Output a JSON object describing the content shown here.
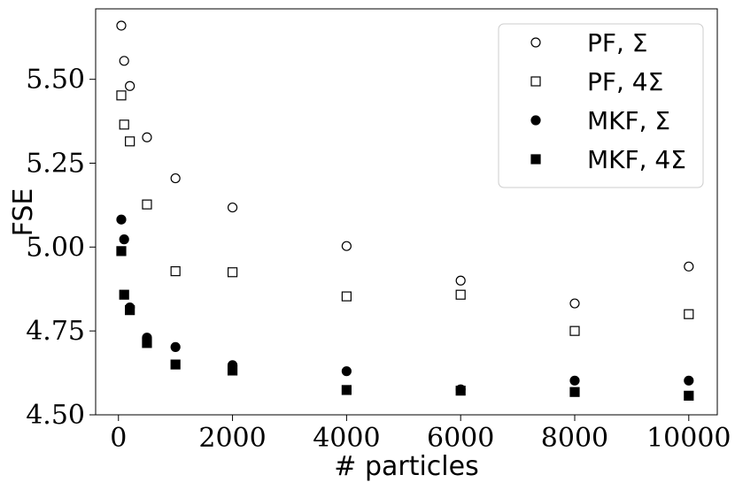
{
  "chart_data": {
    "type": "scatter",
    "title": "",
    "xlabel": "# particles",
    "ylabel": "FSE",
    "xlim": [
      -400,
      10500
    ],
    "ylim": [
      4.5,
      5.71
    ],
    "xticks": [
      0,
      2000,
      4000,
      6000,
      8000,
      10000
    ],
    "yticks": [
      4.5,
      4.75,
      5.0,
      5.25,
      5.5
    ],
    "xtick_labels": [
      "0",
      "2000",
      "4000",
      "6000",
      "8000",
      "10000"
    ],
    "ytick_labels": [
      "4.50",
      "4.75",
      "5.00",
      "5.25",
      "5.50"
    ],
    "grid": false,
    "legend_position": "top-right",
    "series": [
      {
        "name": "PF, Σ",
        "marker": "circle-open",
        "x": [
          50,
          100,
          200,
          500,
          1000,
          2000,
          4000,
          6000,
          8000,
          10000
        ],
        "y": [
          5.66,
          5.555,
          5.48,
          5.327,
          5.205,
          5.118,
          5.003,
          4.9,
          4.832,
          4.942
        ]
      },
      {
        "name": "PF, 4Σ",
        "marker": "square-open",
        "x": [
          50,
          100,
          200,
          500,
          1000,
          2000,
          4000,
          6000,
          8000,
          10000
        ],
        "y": [
          5.452,
          5.365,
          5.315,
          5.127,
          4.928,
          4.925,
          4.853,
          4.858,
          4.75,
          4.8
        ]
      },
      {
        "name": "MKF, Σ",
        "marker": "circle-filled",
        "x": [
          50,
          100,
          200,
          500,
          1000,
          2000,
          4000,
          6000,
          8000,
          10000
        ],
        "y": [
          5.082,
          5.023,
          4.82,
          4.73,
          4.702,
          4.648,
          4.63,
          4.576,
          4.602,
          4.602
        ]
      },
      {
        "name": "MKF, 4Σ",
        "marker": "square-filled",
        "x": [
          50,
          100,
          200,
          500,
          1000,
          2000,
          4000,
          6000,
          8000,
          10000
        ],
        "y": [
          4.988,
          4.858,
          4.812,
          4.714,
          4.65,
          4.632,
          4.574,
          4.572,
          4.568,
          4.557
        ]
      }
    ]
  }
}
